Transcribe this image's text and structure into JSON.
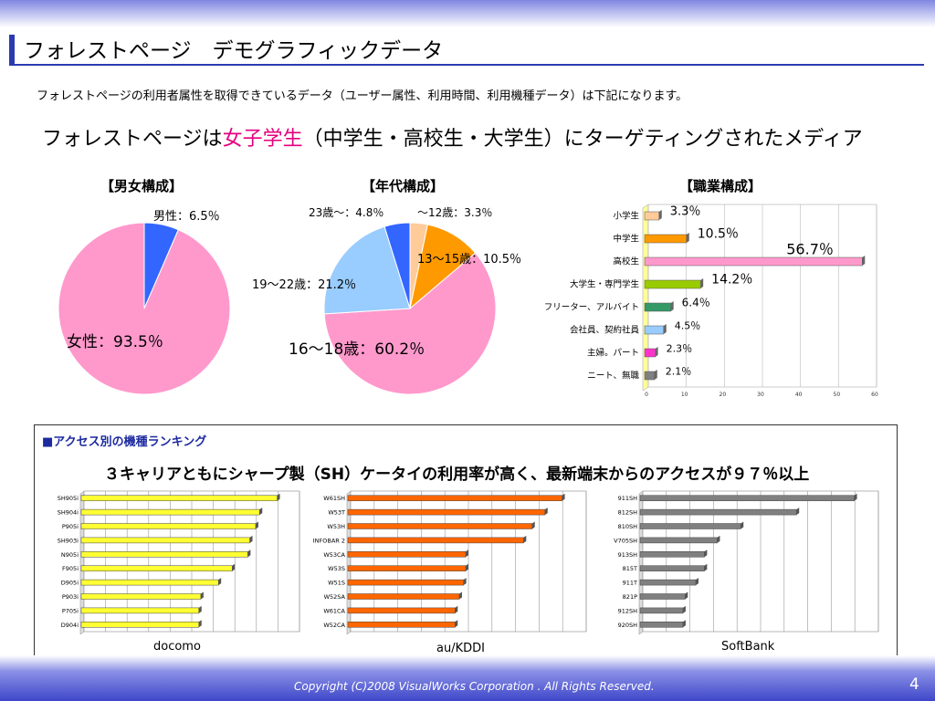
{
  "header": {
    "title": "フォレストページ　デモグラフィックデータ",
    "intro": "フォレストページの利用者属性を取得できているデータ（ユーザー属性、利用時間、利用機種データ）は下記になります。",
    "headline_pre": "フォレストページは",
    "headline_hl": "女子学生",
    "headline_post": "（中学生・高校生・大学生）にターゲティングされたメディア"
  },
  "colors": {
    "pink": "#ff99cc",
    "blue": "#3366ff",
    "orange": "#ff9900",
    "lightblue": "#99ccff",
    "peach": "#ffcc99",
    "accent": "#e4007f",
    "docomo": "#ffff33",
    "kddi": "#ff6600",
    "softbank": "#808080"
  },
  "footer": {
    "copyright": "Copyright (C)2008  VisualWorks Corporation . All Rights Reserved.",
    "page": "4"
  },
  "ranking": {
    "title": "■アクセス別の機種ランキング",
    "subtitle": "３キャリアともにシャープ製（SH）ケータイの利用率が高く、最新端末からのアクセスが９７％以上"
  },
  "chart_data": [
    {
      "type": "pie",
      "title": "【男女構成】",
      "labels": [
        "男性：6.5％",
        "女性：93.5％"
      ],
      "values": [
        6.5,
        93.5
      ],
      "colors": [
        "#3366ff",
        "#ff99cc"
      ]
    },
    {
      "type": "pie",
      "title": "【年代構成】",
      "labels": [
        "〜12歳：3.3％",
        "13〜15歳：10.5％",
        "16〜18歳：60.2％",
        "19〜22歳：21.2％",
        "23歳〜：4.8％"
      ],
      "values": [
        3.3,
        10.5,
        60.2,
        21.2,
        4.8
      ],
      "colors": [
        "#ffcc99",
        "#ff9900",
        "#ff99cc",
        "#99ccff",
        "#3366ff"
      ]
    },
    {
      "type": "bar",
      "orientation": "horizontal",
      "title": "【職業構成】",
      "categories": [
        "小学生",
        "中学生",
        "高校生",
        "大学生・専門学生",
        "フリーター、アルバイト",
        "会社員、契約社員",
        "主婦。パート",
        "ニート、無職"
      ],
      "values": [
        3.3,
        10.5,
        56.7,
        14.2,
        6.4,
        4.5,
        2.3,
        2.1
      ],
      "value_labels": [
        "3.3％",
        "10.5％",
        "56.7％",
        "14.2％",
        "6.4％",
        "4.5％",
        "2.3％",
        "2.1％"
      ],
      "colors": [
        "#ffcc99",
        "#ff9900",
        "#ff99cc",
        "#99cc00",
        "#339966",
        "#99ccff",
        "#ff33cc",
        "#808080"
      ],
      "xlim": [
        0,
        60
      ],
      "xticks": [
        "0",
        "10",
        "20",
        "30",
        "40",
        "50",
        "60"
      ]
    },
    {
      "type": "bar",
      "orientation": "horizontal",
      "name": "docomo",
      "categories": [
        "SH905i",
        "SH904i",
        "P905i",
        "SH903i",
        "N905i",
        "F905i",
        "D905i",
        "P903i",
        "P705i",
        "D904i"
      ],
      "values": [
        100,
        91,
        89,
        86,
        85,
        77,
        70,
        61,
        60,
        60
      ],
      "xlim": [
        0,
        110
      ],
      "color": "#ffff33"
    },
    {
      "type": "bar",
      "orientation": "horizontal",
      "name": "au/KDDI",
      "categories": [
        "W61SH",
        "W53T",
        "W53H",
        "INFOBAR 2",
        "W53CA",
        "W53S",
        "W51S",
        "W52SA",
        "W61CA",
        "W52CA"
      ],
      "values": [
        100,
        92,
        86,
        82,
        55,
        55,
        54,
        52,
        50,
        50
      ],
      "xlim": [
        0,
        110
      ],
      "color": "#ff6600"
    },
    {
      "type": "bar",
      "orientation": "horizontal",
      "name": "SoftBank",
      "categories": [
        "911SH",
        "812SH",
        "810SH",
        "V705SH",
        "913SH",
        "815T",
        "911T",
        "821P",
        "912SH",
        "920SH"
      ],
      "values": [
        100,
        73,
        47,
        36,
        30,
        30,
        26,
        21,
        20,
        20
      ],
      "xlim": [
        0,
        110
      ],
      "color": "#808080"
    }
  ]
}
